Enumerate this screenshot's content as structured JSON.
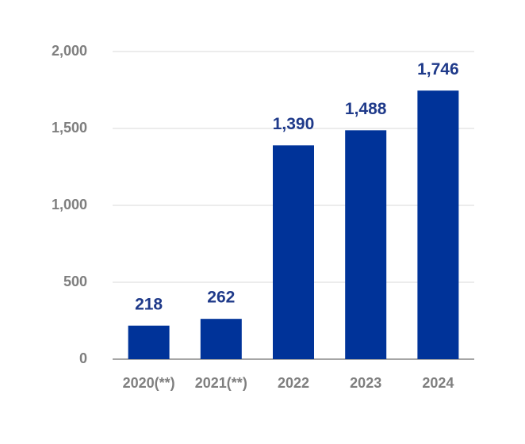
{
  "chart_data": {
    "type": "bar",
    "categories": [
      "2020(**)",
      "2021(**)",
      "2022",
      "2023",
      "2024"
    ],
    "values": [
      218,
      262,
      1390,
      1488,
      1746
    ],
    "value_labels": [
      "218",
      "262",
      "1,390",
      "1,488",
      "1,746"
    ],
    "color": "#003399",
    "ylim": [
      0,
      2000
    ],
    "yticks": [
      0,
      500,
      {
        "value": 1000,
        "label": "1,000"
      },
      {
        "value": 1500,
        "label": "1,500"
      },
      {
        "value": 2000,
        "label": "2,000"
      }
    ],
    "grid": true
  }
}
